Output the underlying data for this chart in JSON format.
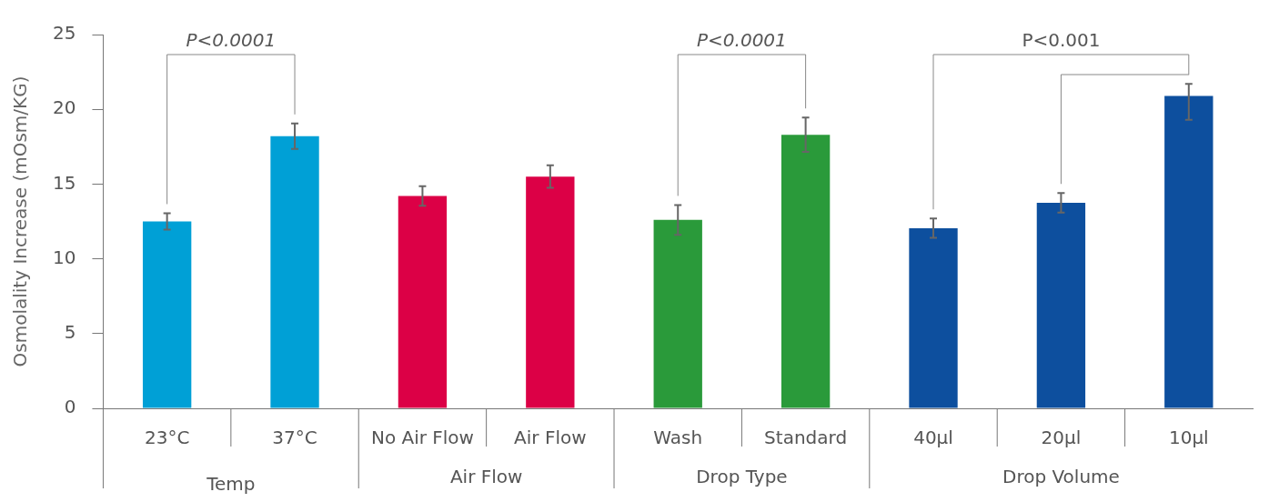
{
  "chart_data": {
    "type": "bar",
    "ylabel": "Osmolality Increase (mOsm/KG)",
    "categories": [
      "23°C",
      "37°C",
      "No Air Flow",
      "Air Flow",
      "Wash",
      "Standard",
      "40µl",
      "20µl",
      "10µl"
    ],
    "values": [
      12.5,
      18.2,
      14.2,
      15.5,
      12.6,
      18.3,
      12.05,
      13.75,
      20.9
    ],
    "colors": [
      "#00a0d6",
      "#00a0d6",
      "#dc0046",
      "#dc0046",
      "#2a9a3a",
      "#2a9a3a",
      "#0d4f9e",
      "#0d4f9e",
      "#0d4f9e"
    ],
    "errors": [
      0.55,
      0.85,
      0.65,
      0.75,
      1.0,
      1.15,
      0.65,
      0.65,
      [
        19.3,
        21.7
      ]
    ],
    "ylim": [
      0,
      25
    ],
    "yticks": [
      0,
      5,
      10,
      15,
      20,
      25
    ],
    "grid": false,
    "legend": false,
    "annotations": [
      "P<0.0001",
      "P<0.0001",
      "P<0.001",
      "Temp",
      "Air Flow",
      "Drop Type",
      "Drop Volume"
    ]
  }
}
